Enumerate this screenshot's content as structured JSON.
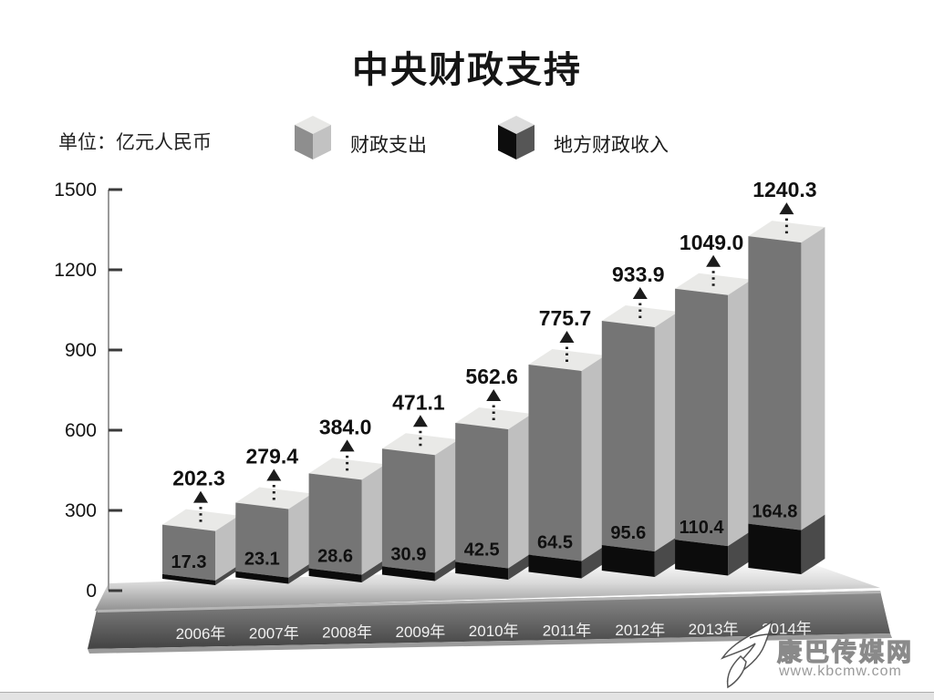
{
  "title": "中央财政支持",
  "unit_label": "单位：亿元人民币",
  "legend": {
    "items": [
      {
        "label": "财政支出",
        "swatch": "gray-3d-cube"
      },
      {
        "label": "地方财政收入",
        "swatch": "black-3d-cube"
      }
    ]
  },
  "watermark": {
    "site_name": "康巴传媒网",
    "url_text": "www.kbcmw.com",
    "logo": "swoosh-leaf-icon"
  },
  "chart_data": {
    "type": "bar",
    "style": "3d-grayscale-cuboids",
    "title": "中央财政支持",
    "ylabel": "亿元人民币",
    "ylim": [
      0,
      1500
    ],
    "yticks": [
      0,
      300,
      600,
      900,
      1200,
      1500
    ],
    "grid": false,
    "legend_position": "top",
    "categories": [
      "2006年",
      "2007年",
      "2008年",
      "2009年",
      "2010年",
      "2011年",
      "2012年",
      "2013年",
      "2014年"
    ],
    "series": [
      {
        "name": "财政支出",
        "values": [
          202.3,
          279.4,
          384.0,
          471.1,
          562.6,
          775.7,
          933.9,
          1049.0,
          1240.3
        ]
      },
      {
        "name": "地方财政收入",
        "values": [
          17.3,
          23.1,
          28.6,
          30.9,
          42.5,
          64.5,
          95.6,
          110.4,
          164.8
        ]
      }
    ],
    "annotations": "dotted up-arrow above each bar with 财政支出 value; 地方财政收入 value printed on bar front above black segment"
  },
  "colors": {
    "bar_front": "#757575",
    "bar_side": "#bfbfbf",
    "bar_top": "#e9e9e7",
    "secondary_front": "#0c0c0c",
    "secondary_side": "#4a4a4a",
    "floor_light": "#ffffff",
    "floor_mid": "#d9d9d9",
    "floor_dark": "#919191",
    "platform_light": "#8f8f8f",
    "platform_dark": "#434343",
    "platform_edge": "#b5b5b5",
    "axis": "#9a9a9a",
    "tick": "#3a3a3a",
    "text": "#131313",
    "arrow": "#1c1c1c",
    "year_text": "#f0f0f0",
    "legend_gray": {
      "top": "#e8e8e6",
      "left": "#8e8e8e",
      "right": "#c2c2c2"
    },
    "legend_black": {
      "top": "#dcdcdc",
      "left": "#0d0d0d",
      "right": "#565656"
    }
  }
}
